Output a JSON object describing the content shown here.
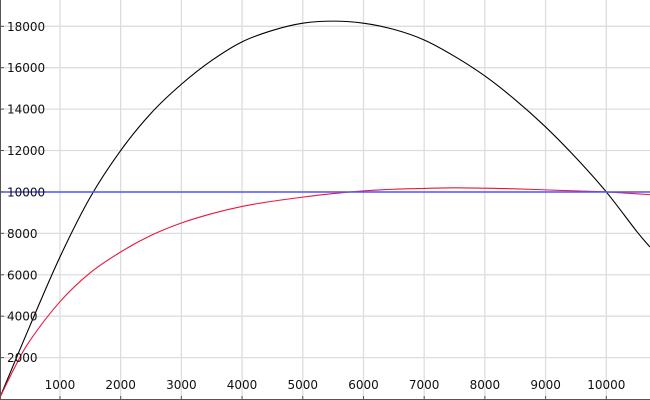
{
  "chart_data": {
    "type": "line",
    "title": "",
    "xlabel": "",
    "ylabel": "",
    "xlim": [
      0,
      10720
    ],
    "ylim": [
      0,
      19270
    ],
    "grid": true,
    "x_ticks": [
      1000,
      2000,
      3000,
      4000,
      5000,
      6000,
      7000,
      8000,
      9000,
      10000
    ],
    "y_ticks": [
      2000,
      4000,
      6000,
      8000,
      10000,
      12000,
      14000,
      16000,
      18000
    ],
    "x_tick_labels": [
      "1000",
      "2000",
      "3000",
      "4000",
      "5000",
      "6000",
      "7000",
      "8000",
      "9000",
      "10000"
    ],
    "y_tick_labels": [
      "2000",
      "4000",
      "6000",
      "8000",
      "10000",
      "12000",
      "14000",
      "16000",
      "18000"
    ],
    "colors": {
      "grid": "#dddddd",
      "axis": "#555555"
    },
    "series": [
      {
        "color": "#000000",
        "x": [
          0,
          500,
          1000,
          1500,
          2000,
          2500,
          3000,
          3500,
          4000,
          4500,
          5000,
          5500,
          6000,
          6500,
          7000,
          7500,
          8000,
          8500,
          9000,
          9500,
          10000,
          10500,
          10720
        ],
        "y": [
          0,
          3500,
          6860,
          9750,
          12000,
          13800,
          15200,
          16350,
          17250,
          17800,
          18150,
          18250,
          18150,
          17850,
          17340,
          16550,
          15600,
          14450,
          13140,
          11650,
          10000,
          8100,
          7340
        ]
      },
      {
        "color": "#e8193c",
        "x": [
          0,
          250,
          500,
          1000,
          1500,
          2000,
          2500,
          3000,
          3500,
          4000,
          4500,
          5000,
          5500,
          6000,
          6500,
          7000,
          7500,
          8000,
          8500,
          9000,
          9500,
          10000,
          10500,
          10720
        ],
        "y": [
          0,
          1500,
          2800,
          4700,
          6100,
          7100,
          7900,
          8500,
          8950,
          9300,
          9550,
          9750,
          9920,
          10050,
          10130,
          10170,
          10200,
          10180,
          10150,
          10100,
          10050,
          10000,
          9910,
          9870
        ]
      },
      {
        "color": "#5555ff",
        "x": [
          0,
          10720
        ],
        "y": [
          10000,
          10000
        ]
      }
    ]
  }
}
